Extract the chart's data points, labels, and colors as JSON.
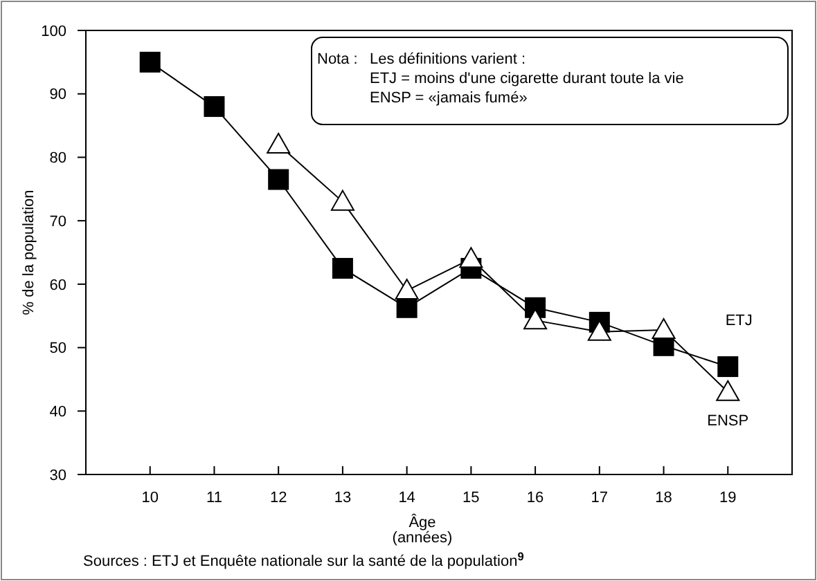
{
  "chart_data": {
    "type": "line",
    "xlabel": "Âge\n(années)",
    "ylabel": "% de la population",
    "categories": [
      "10",
      "11",
      "12",
      "13",
      "14",
      "15",
      "16",
      "17",
      "18",
      "19"
    ],
    "series": [
      {
        "name": "ETJ",
        "color": "#000000",
        "marker": "square",
        "values": [
          95,
          88,
          76.5,
          62.5,
          56.3,
          62.5,
          56.3,
          54,
          50.3,
          47
        ]
      },
      {
        "name": "ENSP",
        "color": "#000000",
        "marker": "triangle",
        "values": [
          null,
          null,
          82,
          73,
          59,
          64,
          54.3,
          52.5,
          52.8,
          43
        ]
      }
    ],
    "ylim": [
      30,
      100
    ],
    "yticks": [
      30,
      40,
      50,
      60,
      70,
      80,
      90,
      100
    ],
    "grid": false,
    "line_style": "solid",
    "annotations": [
      "Nota : Les définitions varient :\nETJ = moins d'une cigarette durant toute la vie\nENSP = «jamais fumé»",
      "Sources : ETJ et Enquête nationale sur la santé de la population$^{9}$"
    ]
  }
}
